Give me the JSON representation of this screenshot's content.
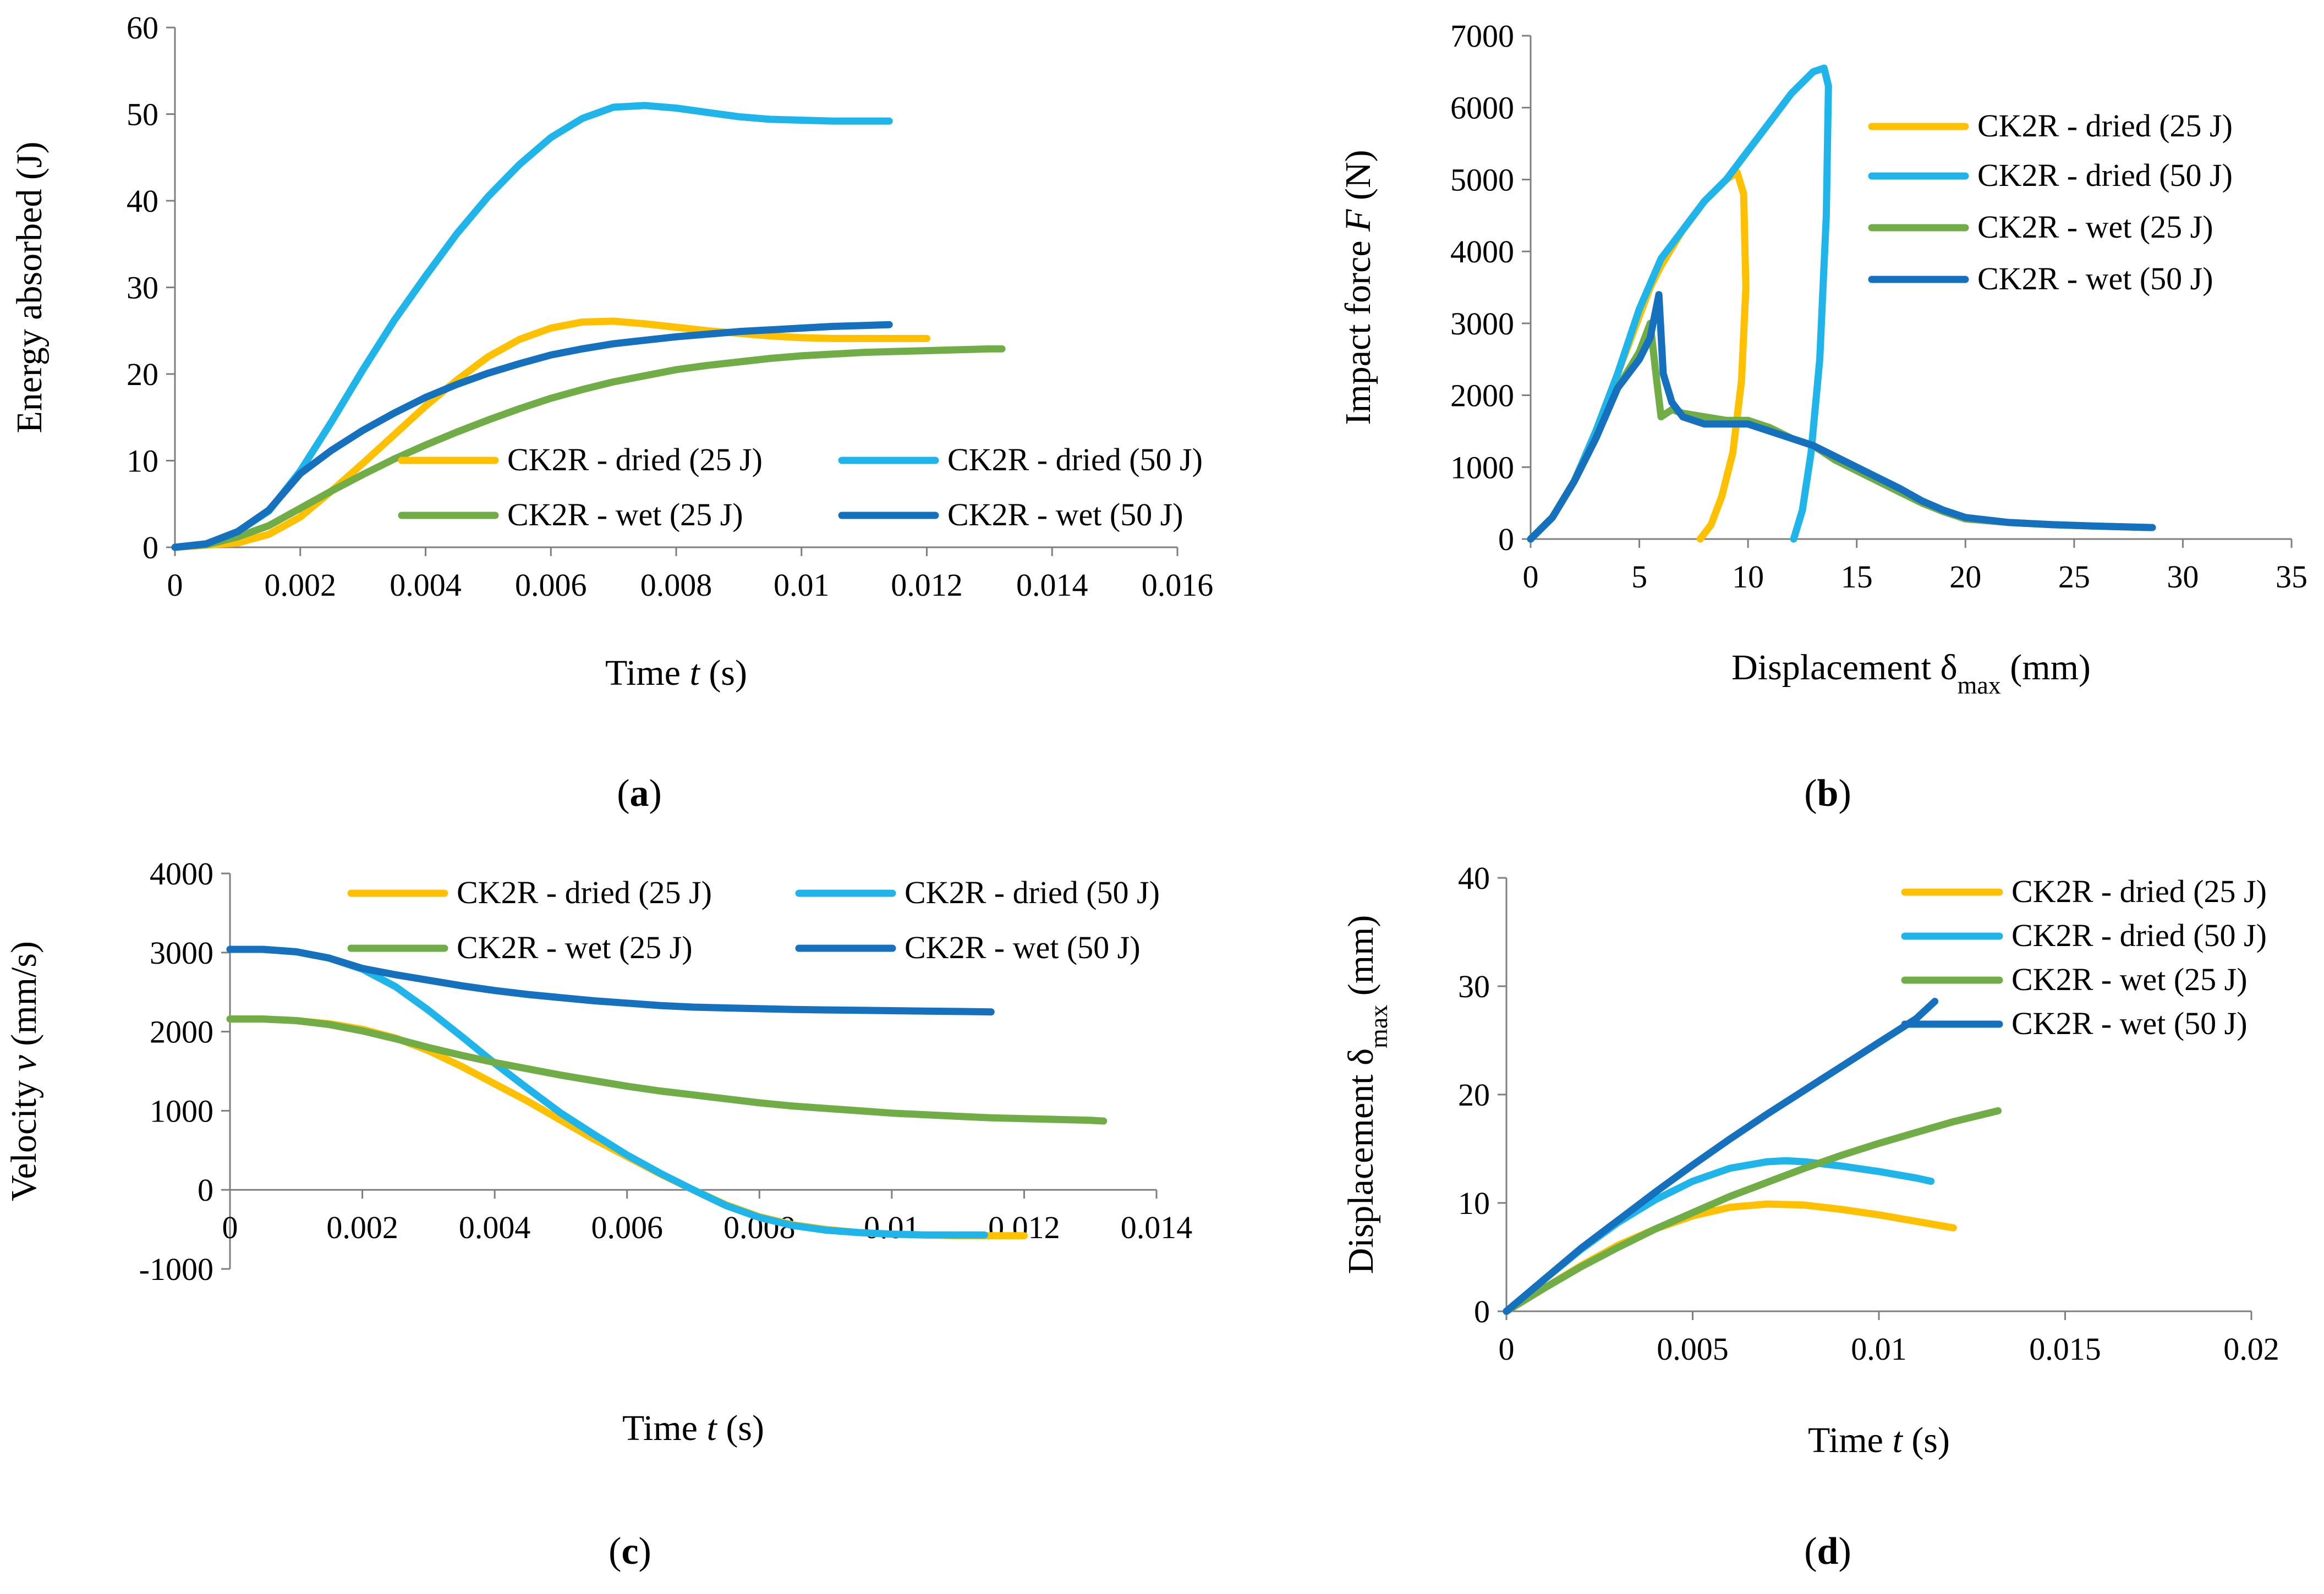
{
  "colors": {
    "dried25": "#FFC000",
    "dried50": "#1FB5EA",
    "wet25": "#70AD47",
    "wet50": "#1570BE"
  },
  "chart_data": [
    {
      "id": "a",
      "type": "line",
      "panel_label": "a",
      "ylabel": "Energy absorbed  (J)",
      "xlabel_pre": "Time ",
      "xlabel_var": "t",
      "xlabel_sub": "",
      "xlabel_post": " (s)",
      "xlim": [
        0,
        0.016
      ],
      "ylim": [
        0,
        60
      ],
      "xticks": [
        0,
        0.002,
        0.004,
        0.006,
        0.008,
        0.01,
        0.012,
        0.014,
        0.016
      ],
      "xtick_labels": [
        "0",
        "0.002",
        "0.004",
        "0.006",
        "0.008",
        "0.01",
        "0.012",
        "0.014",
        "0.016"
      ],
      "yticks": [
        0,
        10,
        20,
        30,
        40,
        50,
        60
      ],
      "ytick_labels": [
        "0",
        "10",
        "20",
        "30",
        "40",
        "50",
        "60"
      ],
      "legend_position": "lower-right two-column",
      "series": [
        {
          "key": "dried25",
          "name": "CK2R - dried (25 J)",
          "x": [
            0,
            0.001,
            0.0015,
            0.002,
            0.0025,
            0.003,
            0.0035,
            0.004,
            0.0045,
            0.005,
            0.0055,
            0.006,
            0.0065,
            0.007,
            0.0075,
            0.008,
            0.0085,
            0.009,
            0.0095,
            0.01,
            0.0105,
            0.011,
            0.012
          ],
          "y": [
            0,
            0.5,
            1.5,
            3.5,
            6.5,
            9.7,
            13,
            16.3,
            19.3,
            22,
            24,
            25.3,
            26,
            26.1,
            25.8,
            25.4,
            25,
            24.7,
            24.4,
            24.2,
            24.1,
            24.1,
            24.1
          ]
        },
        {
          "key": "dried50",
          "name": "CK2R - dried (50 J)",
          "x": [
            0,
            0.0005,
            0.001,
            0.0015,
            0.002,
            0.0025,
            0.003,
            0.0035,
            0.004,
            0.0045,
            0.005,
            0.0055,
            0.006,
            0.0065,
            0.007,
            0.0075,
            0.008,
            0.0085,
            0.009,
            0.0095,
            0.01,
            0.0105,
            0.011,
            0.0114
          ],
          "y": [
            0,
            0.4,
            1.8,
            4.2,
            8.8,
            14.5,
            20.5,
            26.2,
            31.3,
            36.2,
            40.5,
            44.2,
            47.3,
            49.5,
            50.8,
            51,
            50.7,
            50.2,
            49.7,
            49.4,
            49.3,
            49.2,
            49.2,
            49.2
          ]
        },
        {
          "key": "wet25",
          "name": "CK2R - wet (25 J)",
          "x": [
            0,
            0.0005,
            0.001,
            0.0015,
            0.002,
            0.0025,
            0.003,
            0.0035,
            0.004,
            0.0045,
            0.005,
            0.0055,
            0.006,
            0.0065,
            0.007,
            0.0075,
            0.008,
            0.0085,
            0.009,
            0.0095,
            0.01,
            0.0105,
            0.011,
            0.0115,
            0.012,
            0.0125,
            0.013,
            0.0132
          ],
          "y": [
            0,
            0.3,
            1.2,
            2.5,
            4.5,
            6.5,
            8.4,
            10.2,
            11.8,
            13.3,
            14.7,
            16,
            17.2,
            18.2,
            19.1,
            19.8,
            20.5,
            21,
            21.4,
            21.8,
            22.1,
            22.3,
            22.5,
            22.6,
            22.7,
            22.8,
            22.9,
            22.9
          ]
        },
        {
          "key": "wet50",
          "name": "CK2R - wet (50 J)",
          "x": [
            0,
            0.0005,
            0.001,
            0.0015,
            0.002,
            0.0025,
            0.003,
            0.0035,
            0.004,
            0.0045,
            0.005,
            0.0055,
            0.006,
            0.0065,
            0.007,
            0.0075,
            0.008,
            0.0085,
            0.009,
            0.0095,
            0.01,
            0.0105,
            0.011,
            0.0114
          ],
          "y": [
            0,
            0.4,
            1.8,
            4.3,
            8.5,
            11.2,
            13.5,
            15.5,
            17.3,
            18.8,
            20.1,
            21.2,
            22.2,
            22.9,
            23.5,
            23.9,
            24.3,
            24.6,
            24.9,
            25.1,
            25.3,
            25.5,
            25.6,
            25.7
          ]
        }
      ]
    },
    {
      "id": "b",
      "type": "line",
      "panel_label": "b",
      "ylabel_pre": "Impact force ",
      "ylabel_var": "F",
      "ylabel_post": " (N)",
      "xlabel_pre": "Displacement δ",
      "xlabel_var": "",
      "xlabel_sub": "max",
      "xlabel_post": " (mm)",
      "xlim": [
        0,
        35
      ],
      "ylim": [
        0,
        7000
      ],
      "xticks": [
        0,
        5,
        10,
        15,
        20,
        25,
        30,
        35
      ],
      "xtick_labels": [
        "0",
        "5",
        "10",
        "15",
        "20",
        "25",
        "30",
        "35"
      ],
      "yticks": [
        0,
        1000,
        2000,
        3000,
        4000,
        5000,
        6000,
        7000
      ],
      "ytick_labels": [
        "0",
        "1000",
        "2000",
        "3000",
        "4000",
        "5000",
        "6000",
        "7000"
      ],
      "legend_position": "right",
      "series": [
        {
          "key": "dried25",
          "name": "CK2R - dried (25 J)",
          "x": [
            0,
            1,
            2,
            3,
            4,
            5,
            5.5,
            6,
            7,
            8,
            9,
            9.5,
            9.8,
            9.9,
            9.7,
            9.3,
            8.8,
            8.3,
            7.8
          ],
          "y": [
            0,
            300,
            800,
            1500,
            2300,
            3100,
            3500,
            3800,
            4300,
            4700,
            5000,
            5100,
            4800,
            3500,
            2200,
            1200,
            600,
            200,
            0
          ]
        },
        {
          "key": "dried50",
          "name": "CK2R - dried (50 J)",
          "x": [
            0,
            1,
            2,
            3,
            4,
            5,
            6,
            7,
            8,
            9,
            10,
            11,
            12,
            13,
            13.5,
            13.7,
            13.6,
            13.3,
            12.9,
            12.5,
            12.1
          ],
          "y": [
            0,
            300,
            800,
            1500,
            2300,
            3200,
            3900,
            4300,
            4700,
            5000,
            5400,
            5800,
            6200,
            6500,
            6550,
            6300,
            4500,
            2500,
            1200,
            400,
            0
          ]
        },
        {
          "key": "wet25",
          "name": "CK2R - wet (25 J)",
          "x": [
            0,
            1,
            2,
            3,
            4,
            5,
            5.5,
            5.8,
            6,
            6.5,
            7,
            8,
            9,
            10,
            11,
            12,
            13,
            14,
            15,
            16,
            17,
            18,
            19,
            20,
            22,
            24,
            26,
            28.5
          ],
          "y": [
            0,
            300,
            800,
            1400,
            2100,
            2600,
            3000,
            2200,
            1700,
            1800,
            1750,
            1700,
            1650,
            1650,
            1550,
            1400,
            1300,
            1100,
            950,
            800,
            650,
            500,
            380,
            280,
            230,
            200,
            180,
            160
          ]
        },
        {
          "key": "wet50",
          "name": "CK2R - wet (50 J)",
          "x": [
            0,
            1,
            2,
            3,
            4,
            5,
            5.5,
            5.9,
            6.1,
            6.5,
            7,
            8,
            9,
            10,
            11,
            12,
            13,
            14,
            15,
            16,
            17,
            18,
            19,
            20,
            22,
            24,
            26,
            28.6
          ],
          "y": [
            0,
            300,
            800,
            1400,
            2100,
            2500,
            2800,
            3400,
            2300,
            1900,
            1700,
            1600,
            1600,
            1600,
            1500,
            1400,
            1300,
            1150,
            1000,
            850,
            700,
            530,
            400,
            300,
            230,
            200,
            180,
            160
          ]
        }
      ]
    },
    {
      "id": "c",
      "type": "line",
      "panel_label": "c",
      "ylabel_pre": "Velocity ",
      "ylabel_var": "v",
      "ylabel_post": " (mm/s)",
      "xlabel_pre": "Time ",
      "xlabel_var": "t",
      "xlabel_sub": "",
      "xlabel_post": " (s)",
      "xlim": [
        0,
        0.014
      ],
      "ylim": [
        -1000,
        4000
      ],
      "xticks": [
        0,
        0.002,
        0.004,
        0.006,
        0.008,
        0.01,
        0.012,
        0.014
      ],
      "xtick_labels": [
        "0",
        "0.002",
        "0.004",
        "0.006",
        "0.008",
        "0.01",
        "0.012",
        "0.014"
      ],
      "yticks": [
        -1000,
        0,
        1000,
        2000,
        3000,
        4000
      ],
      "ytick_labels": [
        "-1000",
        "0",
        "1000",
        "2000",
        "3000",
        "4000"
      ],
      "legend_position": "top-right two-column",
      "series": [
        {
          "key": "dried25",
          "name": "CK2R - dried (25 J)",
          "x": [
            0,
            0.0005,
            0.001,
            0.0015,
            0.002,
            0.0025,
            0.003,
            0.0035,
            0.004,
            0.0045,
            0.005,
            0.0055,
            0.006,
            0.0065,
            0.007,
            0.0075,
            0.008,
            0.0085,
            0.009,
            0.0095,
            0.01,
            0.0105,
            0.011,
            0.012
          ],
          "y": [
            2160,
            2160,
            2140,
            2100,
            2030,
            1920,
            1760,
            1560,
            1340,
            1120,
            880,
            640,
            420,
            200,
            0,
            -190,
            -340,
            -440,
            -500,
            -540,
            -560,
            -570,
            -580,
            -580
          ]
        },
        {
          "key": "dried50",
          "name": "CK2R - dried (50 J)",
          "x": [
            0,
            0.0005,
            0.001,
            0.0015,
            0.002,
            0.0025,
            0.003,
            0.0035,
            0.004,
            0.0045,
            0.005,
            0.0055,
            0.006,
            0.0065,
            0.007,
            0.0075,
            0.008,
            0.0085,
            0.009,
            0.0095,
            0.01,
            0.0105,
            0.011,
            0.0114
          ],
          "y": [
            3040,
            3040,
            3010,
            2930,
            2790,
            2570,
            2270,
            1940,
            1600,
            1280,
            970,
            700,
            440,
            210,
            0,
            -200,
            -350,
            -450,
            -510,
            -540,
            -560,
            -570,
            -570,
            -570
          ]
        },
        {
          "key": "wet25",
          "name": "CK2R - wet (25 J)",
          "x": [
            0,
            0.0005,
            0.001,
            0.0015,
            0.002,
            0.0025,
            0.003,
            0.0035,
            0.004,
            0.0045,
            0.005,
            0.0055,
            0.006,
            0.0065,
            0.007,
            0.0075,
            0.008,
            0.0085,
            0.009,
            0.0095,
            0.01,
            0.0105,
            0.011,
            0.0115,
            0.012,
            0.0125,
            0.013,
            0.0132
          ],
          "y": [
            2160,
            2160,
            2140,
            2090,
            2010,
            1910,
            1800,
            1700,
            1610,
            1530,
            1450,
            1380,
            1310,
            1250,
            1200,
            1150,
            1100,
            1060,
            1030,
            1000,
            970,
            950,
            930,
            910,
            900,
            890,
            880,
            870
          ]
        },
        {
          "key": "wet50",
          "name": "CK2R - wet (50 J)",
          "x": [
            0,
            0.0005,
            0.001,
            0.0015,
            0.002,
            0.0025,
            0.003,
            0.0035,
            0.004,
            0.0045,
            0.005,
            0.0055,
            0.006,
            0.0065,
            0.007,
            0.0075,
            0.008,
            0.0085,
            0.009,
            0.0095,
            0.01,
            0.0105,
            0.011,
            0.0115
          ],
          "y": [
            3040,
            3040,
            3010,
            2930,
            2800,
            2720,
            2650,
            2580,
            2520,
            2470,
            2430,
            2390,
            2360,
            2330,
            2310,
            2300,
            2290,
            2280,
            2275,
            2270,
            2265,
            2260,
            2255,
            2250
          ]
        }
      ]
    },
    {
      "id": "d",
      "type": "line",
      "panel_label": "d",
      "ylabel_pre": "Displacement δ",
      "ylabel_var": "",
      "ylabel_sub": "max",
      "ylabel_post": " (mm)",
      "xlabel_pre": "Time ",
      "xlabel_var": "t",
      "xlabel_sub": "",
      "xlabel_post": " (s)",
      "xlim": [
        0,
        0.02
      ],
      "ylim": [
        0,
        40
      ],
      "xticks": [
        0,
        0.005,
        0.01,
        0.015,
        0.02
      ],
      "xtick_labels": [
        "0",
        "0.005",
        "0.01",
        "0.015",
        "0.02"
      ],
      "yticks": [
        0,
        10,
        20,
        30,
        40
      ],
      "ytick_labels": [
        "0",
        "10",
        "20",
        "30",
        "40"
      ],
      "legend_position": "top-right",
      "series": [
        {
          "key": "dried25",
          "name": "CK2R - dried (25 J)",
          "x": [
            0,
            0.001,
            0.002,
            0.003,
            0.004,
            0.005,
            0.006,
            0.007,
            0.008,
            0.009,
            0.01,
            0.011,
            0.012
          ],
          "y": [
            0,
            2.1,
            4.2,
            6.1,
            7.6,
            8.8,
            9.6,
            9.9,
            9.8,
            9.4,
            8.9,
            8.3,
            7.7
          ]
        },
        {
          "key": "dried50",
          "name": "CK2R - dried (50 J)",
          "x": [
            0,
            0.001,
            0.002,
            0.003,
            0.004,
            0.005,
            0.006,
            0.007,
            0.0075,
            0.008,
            0.009,
            0.01,
            0.011,
            0.0114
          ],
          "y": [
            0,
            2.9,
            5.7,
            8.2,
            10.3,
            12,
            13.2,
            13.8,
            13.9,
            13.8,
            13.4,
            12.9,
            12.3,
            12
          ]
        },
        {
          "key": "wet25",
          "name": "CK2R - wet (25 J)",
          "x": [
            0,
            0.001,
            0.002,
            0.003,
            0.004,
            0.005,
            0.006,
            0.007,
            0.008,
            0.009,
            0.01,
            0.011,
            0.012,
            0.0132
          ],
          "y": [
            0,
            2.1,
            4.1,
            5.9,
            7.6,
            9.1,
            10.6,
            11.9,
            13.2,
            14.4,
            15.5,
            16.5,
            17.5,
            18.5
          ]
        },
        {
          "key": "wet50",
          "name": "CK2R - wet (50 J)",
          "x": [
            0,
            0.001,
            0.002,
            0.003,
            0.004,
            0.005,
            0.006,
            0.007,
            0.008,
            0.009,
            0.01,
            0.011,
            0.0115
          ],
          "y": [
            0,
            2.9,
            5.8,
            8.4,
            11,
            13.5,
            15.9,
            18.2,
            20.4,
            22.6,
            24.8,
            27,
            28.6
          ]
        }
      ]
    }
  ]
}
